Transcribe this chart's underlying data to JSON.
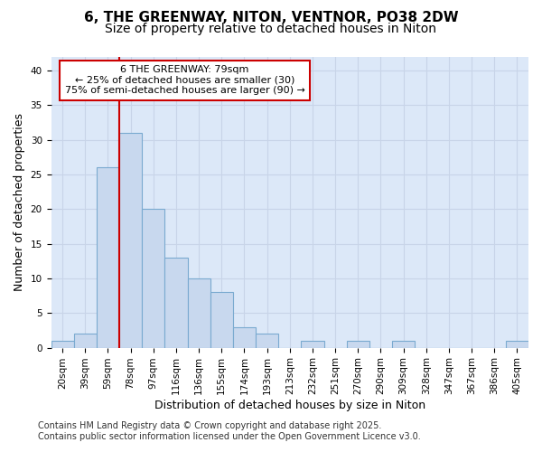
{
  "title_line1": "6, THE GREENWAY, NITON, VENTNOR, PO38 2DW",
  "title_line2": "Size of property relative to detached houses in Niton",
  "categories": [
    "20sqm",
    "39sqm",
    "59sqm",
    "78sqm",
    "97sqm",
    "116sqm",
    "136sqm",
    "155sqm",
    "174sqm",
    "193sqm",
    "213sqm",
    "232sqm",
    "251sqm",
    "270sqm",
    "290sqm",
    "309sqm",
    "328sqm",
    "347sqm",
    "367sqm",
    "386sqm",
    "405sqm"
  ],
  "values": [
    1,
    2,
    26,
    31,
    20,
    13,
    10,
    8,
    3,
    2,
    0,
    1,
    0,
    1,
    0,
    1,
    0,
    0,
    0,
    0,
    1
  ],
  "bar_color": "#c8d8ee",
  "bar_edgecolor": "#7aaad0",
  "red_line_x": 3.0,
  "annotation_text_line1": "6 THE GREENWAY: 79sqm",
  "annotation_text_line2": "← 25% of detached houses are smaller (30)",
  "annotation_text_line3": "75% of semi-detached houses are larger (90) →",
  "annotation_box_color": "#ffffff",
  "annotation_box_edgecolor": "#cc0000",
  "xlabel": "Distribution of detached houses by size in Niton",
  "ylabel": "Number of detached properties",
  "ylim": [
    0,
    42
  ],
  "yticks": [
    0,
    5,
    10,
    15,
    20,
    25,
    30,
    35,
    40
  ],
  "grid_color": "#c8d4e8",
  "background_color": "#dce8f8",
  "fig_background": "#ffffff",
  "footer_line1": "Contains HM Land Registry data © Crown copyright and database right 2025.",
  "footer_line2": "Contains public sector information licensed under the Open Government Licence v3.0.",
  "red_line_color": "#cc0000",
  "title_fontsize": 11,
  "subtitle_fontsize": 10,
  "axis_label_fontsize": 9,
  "tick_fontsize": 7.5,
  "footer_fontsize": 7,
  "annotation_fontsize": 8
}
